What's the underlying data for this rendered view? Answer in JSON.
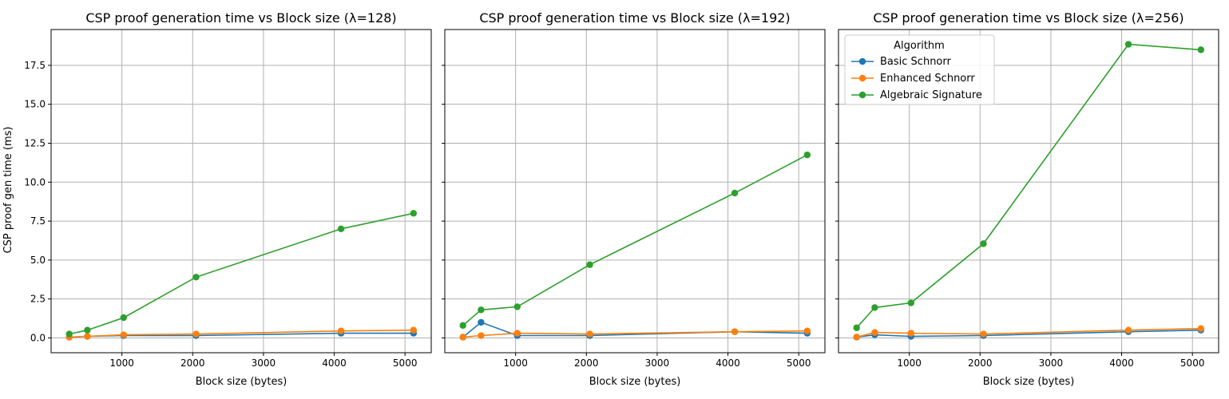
{
  "figure": {
    "ylabel": "CSP proof gen time (ms)"
  },
  "legend": {
    "title": "Algorithm",
    "entries": [
      "Basic Schnorr",
      "Enhanced Schnorr",
      "Algebraic Signature"
    ]
  },
  "colors": {
    "Basic Schnorr": "#1f77b4",
    "Enhanced Schnorr": "#ff7f0e",
    "Algebraic Signature": "#2ca02c",
    "grid": "#b0b0b0"
  },
  "chart_data": [
    {
      "type": "line",
      "title": "CSP proof generation time vs Block size (λ=128)",
      "xlabel": "Block size (bytes)",
      "ylabel": "CSP proof gen time (ms)",
      "x": [
        256,
        512,
        1024,
        2048,
        4096,
        5120
      ],
      "xlim": [
        -0.01,
        5370
      ],
      "ylim": [
        -0.95,
        19.8
      ],
      "xticks": [
        1000,
        2000,
        3000,
        4000,
        5000
      ],
      "yticks": [
        "0.0",
        "2.5",
        "5.0",
        "7.5",
        "10.0",
        "12.5",
        "15.0",
        "17.5"
      ],
      "grid": true,
      "series": [
        {
          "name": "Basic Schnorr",
          "values": [
            0.05,
            0.1,
            0.15,
            0.15,
            0.3,
            0.3
          ]
        },
        {
          "name": "Enhanced Schnorr",
          "values": [
            0.05,
            0.1,
            0.2,
            0.25,
            0.45,
            0.5
          ]
        },
        {
          "name": "Algebraic Signature",
          "values": [
            0.25,
            0.5,
            1.3,
            3.9,
            7.0,
            8.0
          ]
        }
      ]
    },
    {
      "type": "line",
      "title": "CSP proof generation time vs Block size (λ=192)",
      "xlabel": "Block size (bytes)",
      "x": [
        256,
        512,
        1024,
        2048,
        4096,
        5120
      ],
      "xlim": [
        -0.01,
        5370
      ],
      "ylim": [
        -0.95,
        19.8
      ],
      "xticks": [
        1000,
        2000,
        3000,
        4000,
        5000
      ],
      "grid": true,
      "series": [
        {
          "name": "Basic Schnorr",
          "values": [
            0.05,
            1.0,
            0.15,
            0.15,
            0.4,
            0.3
          ]
        },
        {
          "name": "Enhanced Schnorr",
          "values": [
            0.05,
            0.15,
            0.3,
            0.25,
            0.4,
            0.45
          ]
        },
        {
          "name": "Algebraic Signature",
          "values": [
            0.8,
            1.8,
            2.0,
            4.7,
            9.3,
            11.75
          ]
        }
      ]
    },
    {
      "type": "line",
      "title": "CSP proof generation time vs Block size (λ=256)",
      "xlabel": "Block size (bytes)",
      "x": [
        256,
        512,
        1024,
        2048,
        4096,
        5120
      ],
      "xlim": [
        -0.01,
        5370
      ],
      "ylim": [
        -0.95,
        19.8
      ],
      "xticks": [
        1000,
        2000,
        3000,
        4000,
        5000
      ],
      "grid": true,
      "legend_position": "upper-left",
      "series": [
        {
          "name": "Basic Schnorr",
          "values": [
            0.05,
            0.2,
            0.1,
            0.15,
            0.4,
            0.5
          ]
        },
        {
          "name": "Enhanced Schnorr",
          "values": [
            0.05,
            0.35,
            0.3,
            0.25,
            0.5,
            0.6
          ]
        },
        {
          "name": "Algebraic Signature",
          "values": [
            0.65,
            1.95,
            2.25,
            6.05,
            18.85,
            18.5
          ]
        }
      ]
    }
  ]
}
